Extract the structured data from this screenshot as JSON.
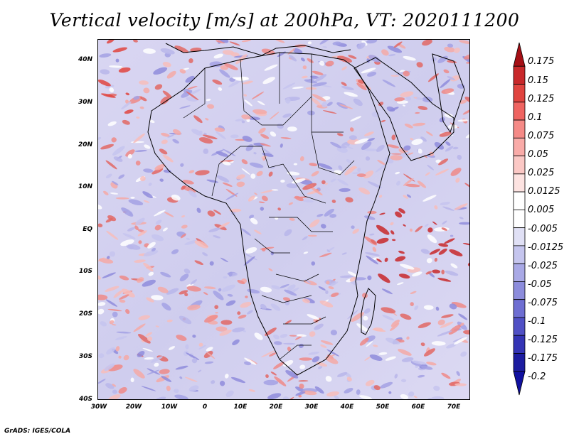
{
  "title": "Vertical velocity [m/s] at 200hPa, VT: 2020111200",
  "credit": "GrADS: IGES/COLA",
  "map": {
    "lat_ticks": [
      "40N",
      "30N",
      "20N",
      "10N",
      "EQ",
      "10S",
      "20S",
      "30S",
      "40S"
    ],
    "lon_ticks": [
      "30W",
      "20W",
      "10W",
      "0",
      "10E",
      "20E",
      "30E",
      "40E",
      "50E",
      "60E",
      "70E"
    ],
    "extent": {
      "lon": [
        -30,
        75
      ],
      "lat": [
        -40,
        45
      ]
    }
  },
  "colorbar": {
    "labels": [
      "0.175",
      "0.15",
      "0.125",
      "0.1",
      "0.075",
      "0.05",
      "0.025",
      "0.0125",
      "0.005",
      "-0.005",
      "-0.0125",
      "-0.025",
      "-0.05",
      "-0.075",
      "-0.1",
      "-0.125",
      "-0.175",
      "-0.2"
    ],
    "colors": [
      "#a50f15",
      "#c8282a",
      "#e0443f",
      "#ef6461",
      "#f58a87",
      "#f9aba8",
      "#fbc8c5",
      "#fde3e1",
      "#ffffff",
      "#ffffff",
      "#e0e0f5",
      "#c5c5ee",
      "#a9a9e6",
      "#8c8cdc",
      "#6e6ed2",
      "#5050c5",
      "#3434b5",
      "#1c1ca0",
      "#1010a0"
    ]
  }
}
